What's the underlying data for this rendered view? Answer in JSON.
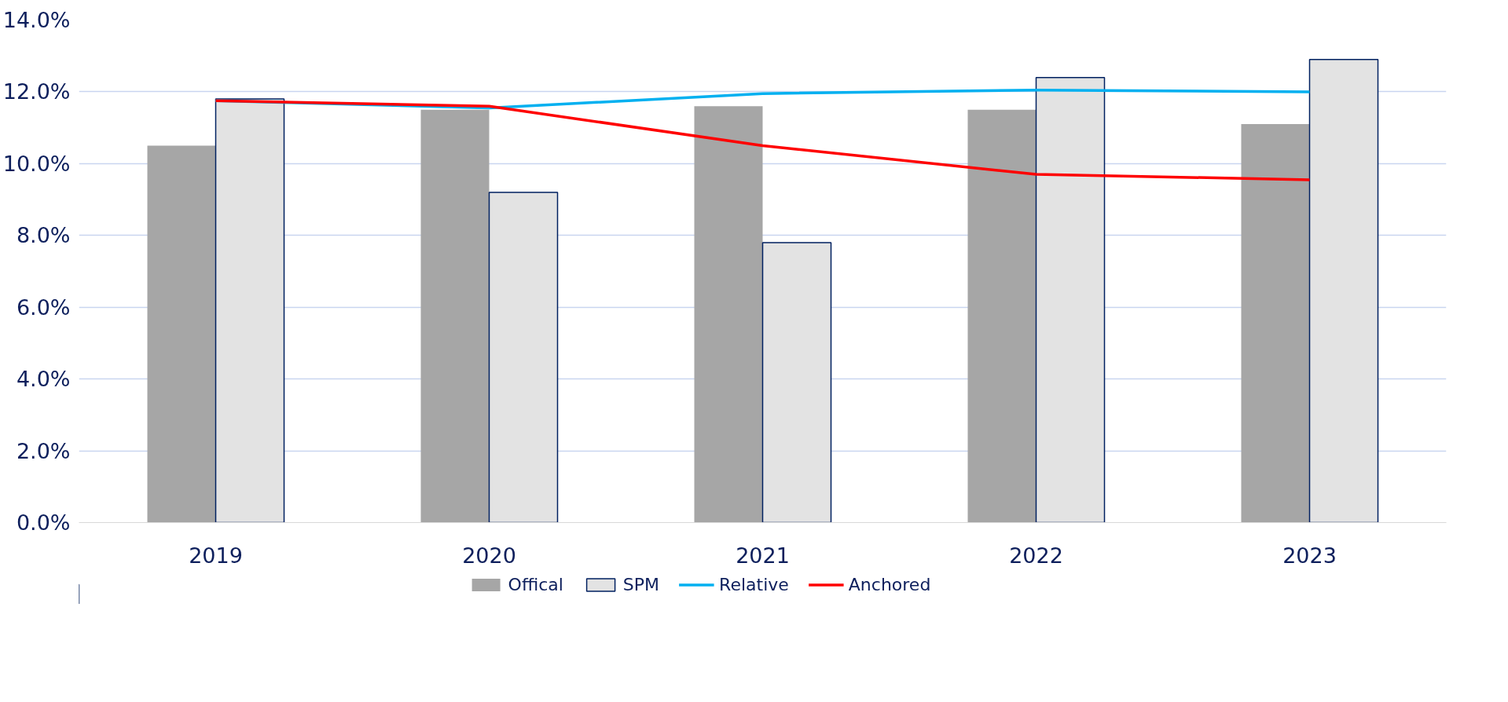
{
  "chart_data": {
    "type": "bar",
    "categories": [
      "2019",
      "2020",
      "2021",
      "2022",
      "2023"
    ],
    "series": [
      {
        "name": "Offical",
        "color": "#a6a6a6",
        "values": [
          10.5,
          11.5,
          11.6,
          11.5,
          11.1
        ]
      },
      {
        "name": "SPM",
        "color": "#e3e3e3",
        "values": [
          11.8,
          9.2,
          7.8,
          12.4,
          12.9
        ]
      },
      {
        "name": "Relative",
        "type": "line",
        "color": "#00b0f0",
        "values": [
          11.75,
          11.55,
          11.95,
          12.05,
          12.0
        ]
      },
      {
        "name": "Anchored",
        "type": "line",
        "color": "#ff0000",
        "values": [
          11.75,
          11.6,
          10.5,
          9.7,
          9.55
        ]
      }
    ],
    "ylim": [
      0,
      14
    ],
    "yticks": [
      {
        "value": 0,
        "label": "0.0%"
      },
      {
        "value": 2,
        "label": "2.0%"
      },
      {
        "value": 4,
        "label": "4.0%"
      },
      {
        "value": 6,
        "label": "6.0%"
      },
      {
        "value": 8,
        "label": "8.0%"
      },
      {
        "value": 10,
        "label": "10.0%"
      },
      {
        "value": 12,
        "label": "12.0%"
      },
      {
        "value": 14,
        "label": "14.0%"
      }
    ],
    "grid": "y",
    "legend": "bottom",
    "marker": "none",
    "line_style": "solid"
  }
}
